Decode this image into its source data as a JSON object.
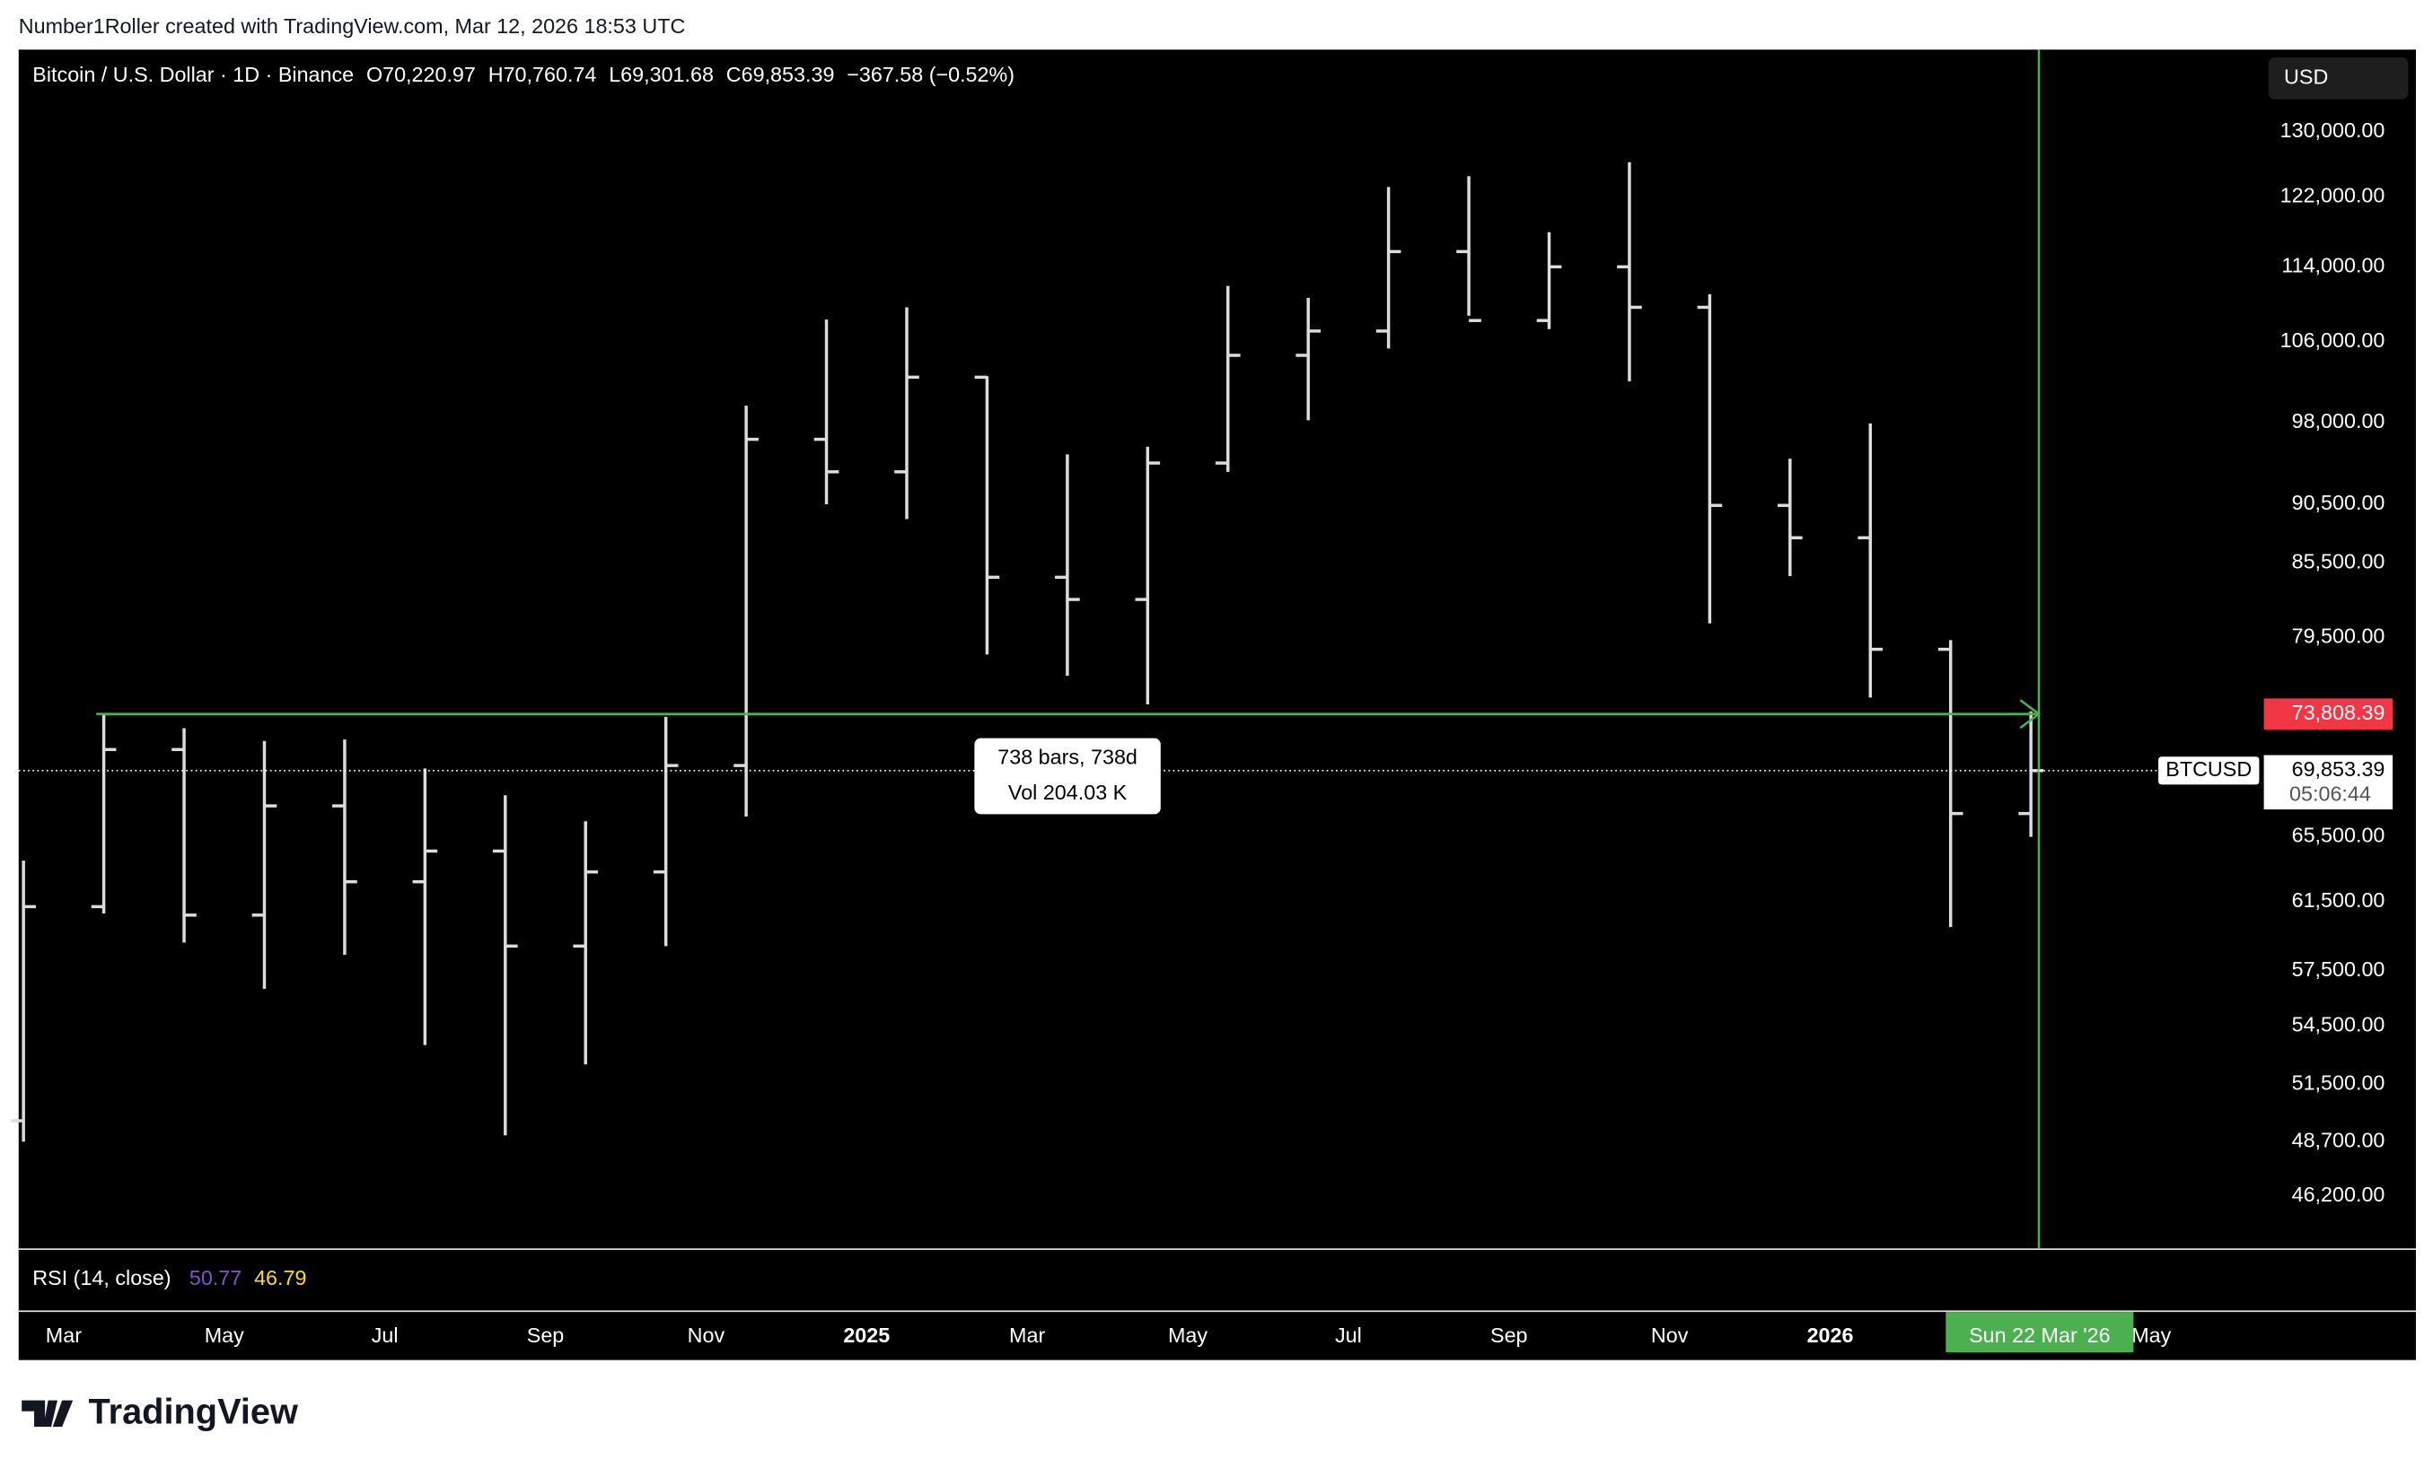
{
  "header": {
    "credit": "Number1Roller created with TradingView.com, Mar 12, 2026 18:53 UTC"
  },
  "footer": {
    "brand": "TradingView"
  },
  "toolbar": {
    "currency": "USD"
  },
  "chart_data": {
    "type": "ohlc",
    "legend_items": [
      "Bitcoin / U.S. Dollar · 1D · Binance",
      "O70,220.97",
      "H70,760.74",
      "L69,301.68",
      "C69,853.39",
      "−367.58 (−0.52%)"
    ],
    "x": [
      "2024-02",
      "2024-03",
      "2024-04",
      "2024-05",
      "2024-06",
      "2024-07",
      "2024-08",
      "2024-09",
      "2024-10",
      "2024-11",
      "2024-12",
      "2025-01",
      "2025-02",
      "2025-03",
      "2025-04",
      "2025-05",
      "2025-06",
      "2025-07",
      "2025-08",
      "2025-09",
      "2025-10",
      "2025-11",
      "2025-12",
      "2026-01",
      "2026-02",
      "2026-03"
    ],
    "series": [
      {
        "name": "open",
        "values": [
          49700,
          61200,
          71300,
          60700,
          67500,
          62700,
          64600,
          58900,
          63300,
          70200,
          96400,
          93400,
          102400,
          84300,
          82500,
          94200,
          104600,
          107100,
          115700,
          108200,
          114000,
          109600,
          90400,
          87600,
          78600,
          67000
        ]
      },
      {
        "name": "high",
        "values": [
          64000,
          73800,
          72800,
          71900,
          72000,
          70000,
          68200,
          66500,
          73600,
          99600,
          108300,
          109600,
          102500,
          95000,
          95700,
          111900,
          110600,
          123200,
          124500,
          117900,
          126200,
          111000,
          94600,
          97900,
          79300,
          74000
        ]
      },
      {
        "name": "low",
        "values": [
          48700,
          60800,
          59100,
          56500,
          58400,
          53500,
          49000,
          52500,
          58900,
          66800,
          90500,
          89200,
          78200,
          76600,
          74500,
          93400,
          98200,
          105300,
          108700,
          107300,
          102000,
          80600,
          84400,
          75000,
          60000,
          65500
        ]
      },
      {
        "name": "close",
        "values": [
          61200,
          71300,
          60700,
          67500,
          62700,
          64600,
          58900,
          63300,
          70200,
          96400,
          93400,
          102400,
          84300,
          82500,
          94200,
          104600,
          107100,
          115700,
          108200,
          114000,
          109600,
          90400,
          87600,
          78600,
          67000,
          69853.39
        ]
      }
    ],
    "color": "#dcdcdc",
    "log_scale": true,
    "ylim": [
      43900,
      140800
    ],
    "yticks": [
      {
        "value": 130000,
        "label": "130,000.00"
      },
      {
        "value": 122000,
        "label": "122,000.00"
      },
      {
        "value": 114000,
        "label": "114,000.00"
      },
      {
        "value": 106000,
        "label": "106,000.00"
      },
      {
        "value": 98000,
        "label": "98,000.00"
      },
      {
        "value": 90500,
        "label": "90,500.00"
      },
      {
        "value": 85500,
        "label": "85,500.00"
      },
      {
        "value": 79500,
        "label": "79,500.00"
      },
      {
        "value": 65500,
        "label": "65,500.00"
      },
      {
        "value": 61500,
        "label": "61,500.00"
      },
      {
        "value": 57500,
        "label": "57,500.00"
      },
      {
        "value": 54500,
        "label": "54,500.00"
      },
      {
        "value": 51500,
        "label": "51,500.00"
      },
      {
        "value": 48700,
        "label": "48,700.00"
      },
      {
        "value": 46200,
        "label": "46,200.00"
      }
    ],
    "xticks": [
      {
        "value": "2024-03",
        "label": "Mar"
      },
      {
        "value": "2024-05",
        "label": "May"
      },
      {
        "value": "2024-07",
        "label": "Jul"
      },
      {
        "value": "2024-09",
        "label": "Sep"
      },
      {
        "value": "2024-11",
        "label": "Nov"
      },
      {
        "value": "2025-01",
        "label": "2025"
      },
      {
        "value": "2025-03",
        "label": "Mar"
      },
      {
        "value": "2025-05",
        "label": "May"
      },
      {
        "value": "2025-07",
        "label": "Jul"
      },
      {
        "value": "2025-09",
        "label": "Sep"
      },
      {
        "value": "2025-11",
        "label": "Nov"
      },
      {
        "value": "2026-01",
        "label": "2026"
      },
      {
        "value": "2026-05",
        "label": "May"
      }
    ],
    "measure_line": {
      "value": 73808.39,
      "label": "73,808.39",
      "color": "#4caf50",
      "label_color": "#f23645"
    },
    "last_price": {
      "value": 69853.39,
      "label": "69,853.39",
      "symbol": "BTCUSD",
      "countdown": "05:06:44"
    },
    "tooltip": {
      "bars": "738 bars, 738d",
      "volume": "Vol 204.03 K"
    },
    "cursor_date": "Sun 22 Mar '26",
    "rsi": {
      "label": "RSI (14, close)",
      "values": [
        {
          "label": "50.77",
          "color": "#7e57c2"
        },
        {
          "label": "46.79",
          "color": "#fdd835"
        }
      ]
    }
  }
}
